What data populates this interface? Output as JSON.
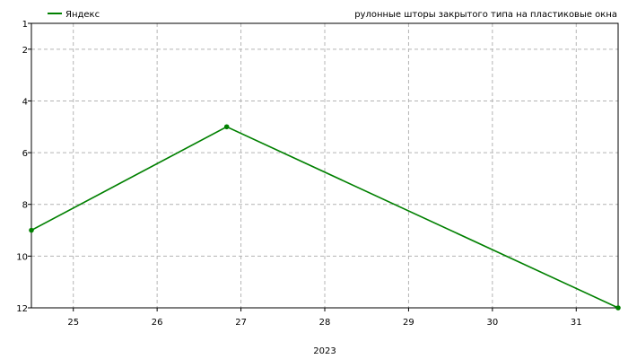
{
  "chart_data": {
    "type": "line",
    "title": "рулонные шторы закрытого типа на пластиковые окна",
    "xlabel": "2023",
    "ylabel": "",
    "x_ticks": [
      "25",
      "26",
      "27",
      "28",
      "29",
      "30",
      "31"
    ],
    "y_ticks": [
      "1",
      "2",
      "4",
      "6",
      "8",
      "10",
      "12"
    ],
    "xlim": [
      24.5,
      31.5
    ],
    "ylim": [
      1,
      12
    ],
    "y_inverted": true,
    "grid": true,
    "legend_position": "top-left",
    "series": [
      {
        "name": "Яндекс",
        "color": "#008000",
        "points": [
          {
            "x": 24.5,
            "y": 9
          },
          {
            "x": 26.83,
            "y": 5
          },
          {
            "x": 31.5,
            "y": 12
          }
        ]
      }
    ]
  }
}
